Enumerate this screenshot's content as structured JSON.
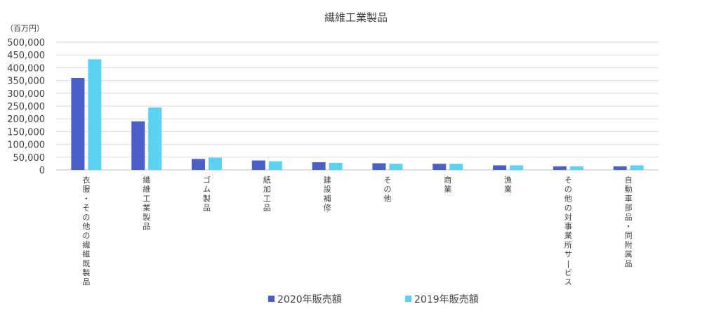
{
  "chart_data": {
    "type": "bar",
    "title": "繊維工業製品",
    "unit_label": "（百万円）",
    "categories": [
      "衣服・その他の繊維既製品",
      "繊維工業製品",
      "ゴム製品",
      "紙加工品",
      "建設補修",
      "その他",
      "商業",
      "漁業",
      "その他の対事業所サービス",
      "自動車部品・同附属品"
    ],
    "series": [
      {
        "name": "2020年販売額",
        "color": "#4a5fc9",
        "values": [
          360000,
          190000,
          43000,
          37000,
          30000,
          26000,
          24000,
          18000,
          14000,
          14000
        ]
      },
      {
        "name": "2019年販売額",
        "color": "#5bd2f2",
        "values": [
          433000,
          244000,
          48000,
          34000,
          28000,
          24000,
          24000,
          18000,
          14000,
          18000
        ]
      }
    ],
    "yticks": [
      "0",
      "50,000",
      "100,000",
      "150,000",
      "200,000",
      "250,000",
      "300,000",
      "350,000",
      "400,000",
      "450,000",
      "500,000"
    ],
    "ylim": [
      0,
      500000
    ],
    "grid": true,
    "legend_position": "bottom"
  }
}
